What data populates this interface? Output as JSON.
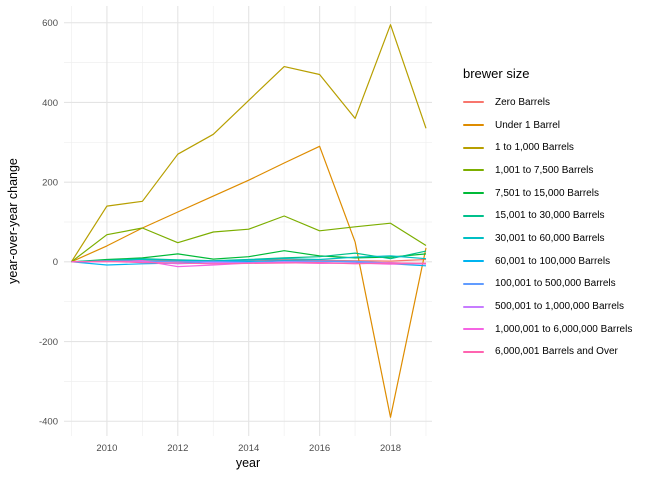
{
  "chart": {
    "legend_title": "brewer size",
    "x_axis_title": "year",
    "y_axis_title": "year-over-year change"
  },
  "chart_data": {
    "type": "line",
    "title": "",
    "xlabel": "year",
    "ylabel": "year-over-year change",
    "legend_title": "brewer size",
    "legend_position": "right",
    "grid": "on",
    "panel_background": "#ffffff",
    "grid_major_color": "#e4e4e4",
    "grid_minor_color": "#efefef",
    "tick_label_color": "#4d4d4d",
    "axis_title_color": "#000000",
    "x": [
      2009,
      2010,
      2011,
      2012,
      2013,
      2014,
      2015,
      2016,
      2017,
      2018,
      2019
    ],
    "x_ticks": [
      2010,
      2012,
      2014,
      2016,
      2018
    ],
    "x_minor_ticks": [
      2009,
      2011,
      2013,
      2015,
      2017,
      2019
    ],
    "y_ticks": [
      -400,
      -200,
      0,
      200,
      400,
      600
    ],
    "y_minor_ticks": [
      -300,
      -100,
      100,
      300,
      500
    ],
    "xlim": [
      2008.79,
      2019.17
    ],
    "ylim": [
      -437,
      642
    ],
    "series": [
      {
        "name": "Zero Barrels",
        "color": "#F8766D",
        "values": [
          0,
          2,
          3,
          2,
          3,
          4,
          5,
          4,
          3,
          2,
          6
        ]
      },
      {
        "name": "Under 1 Barrel",
        "color": "#DE8C00",
        "values": [
          0,
          40,
          85,
          125,
          165,
          205,
          248,
          290,
          50,
          -390,
          35
        ]
      },
      {
        "name": "1 to 1,000 Barrels",
        "color": "#B79F00",
        "values": [
          0,
          140,
          152,
          270,
          320,
          405,
          490,
          470,
          360,
          595,
          335
        ]
      },
      {
        "name": "1,001 to 7,500 Barrels",
        "color": "#7CAE00",
        "values": [
          0,
          68,
          85,
          48,
          75,
          82,
          115,
          78,
          88,
          97,
          41
        ]
      },
      {
        "name": "7,501 to 15,000 Barrels",
        "color": "#00BA38",
        "values": [
          0,
          6,
          10,
          20,
          7,
          13,
          28,
          15,
          10,
          12,
          20
        ]
      },
      {
        "name": "15,001 to 30,000 Barrels",
        "color": "#00C08B",
        "values": [
          0,
          4,
          8,
          5,
          3,
          6,
          10,
          13,
          22,
          8,
          27
        ]
      },
      {
        "name": "30,001 to 60,000 Barrels",
        "color": "#00BFC4",
        "values": [
          0,
          3,
          6,
          4,
          2,
          5,
          8,
          6,
          12,
          15,
          8
        ]
      },
      {
        "name": "60,001 to 100,000 Barrels",
        "color": "#00B4F0",
        "values": [
          0,
          -8,
          -5,
          -3,
          2,
          1,
          3,
          2,
          0,
          -5,
          -10
        ]
      },
      {
        "name": "100,001 to 500,000 Barrels",
        "color": "#619CFF",
        "values": [
          0,
          1,
          2,
          0,
          1,
          -2,
          0,
          2,
          1,
          -3,
          -5
        ]
      },
      {
        "name": "500,001 to 1,000,000 Barrels",
        "color": "#C77CFF",
        "values": [
          0,
          2,
          0,
          -5,
          -2,
          -3,
          0,
          -2,
          -4,
          -2,
          -6
        ]
      },
      {
        "name": "1,000,001 to 6,000,000 Barrels",
        "color": "#F564E3",
        "values": [
          0,
          0,
          3,
          -12,
          -8,
          -3,
          -2,
          -4,
          -3,
          -6,
          -4
        ]
      },
      {
        "name": "6,000,001 Barrels and Over",
        "color": "#FF64B0",
        "values": [
          0,
          1,
          -2,
          -3,
          -5,
          -4,
          -3,
          -2,
          -5,
          -3,
          -4
        ]
      }
    ]
  }
}
